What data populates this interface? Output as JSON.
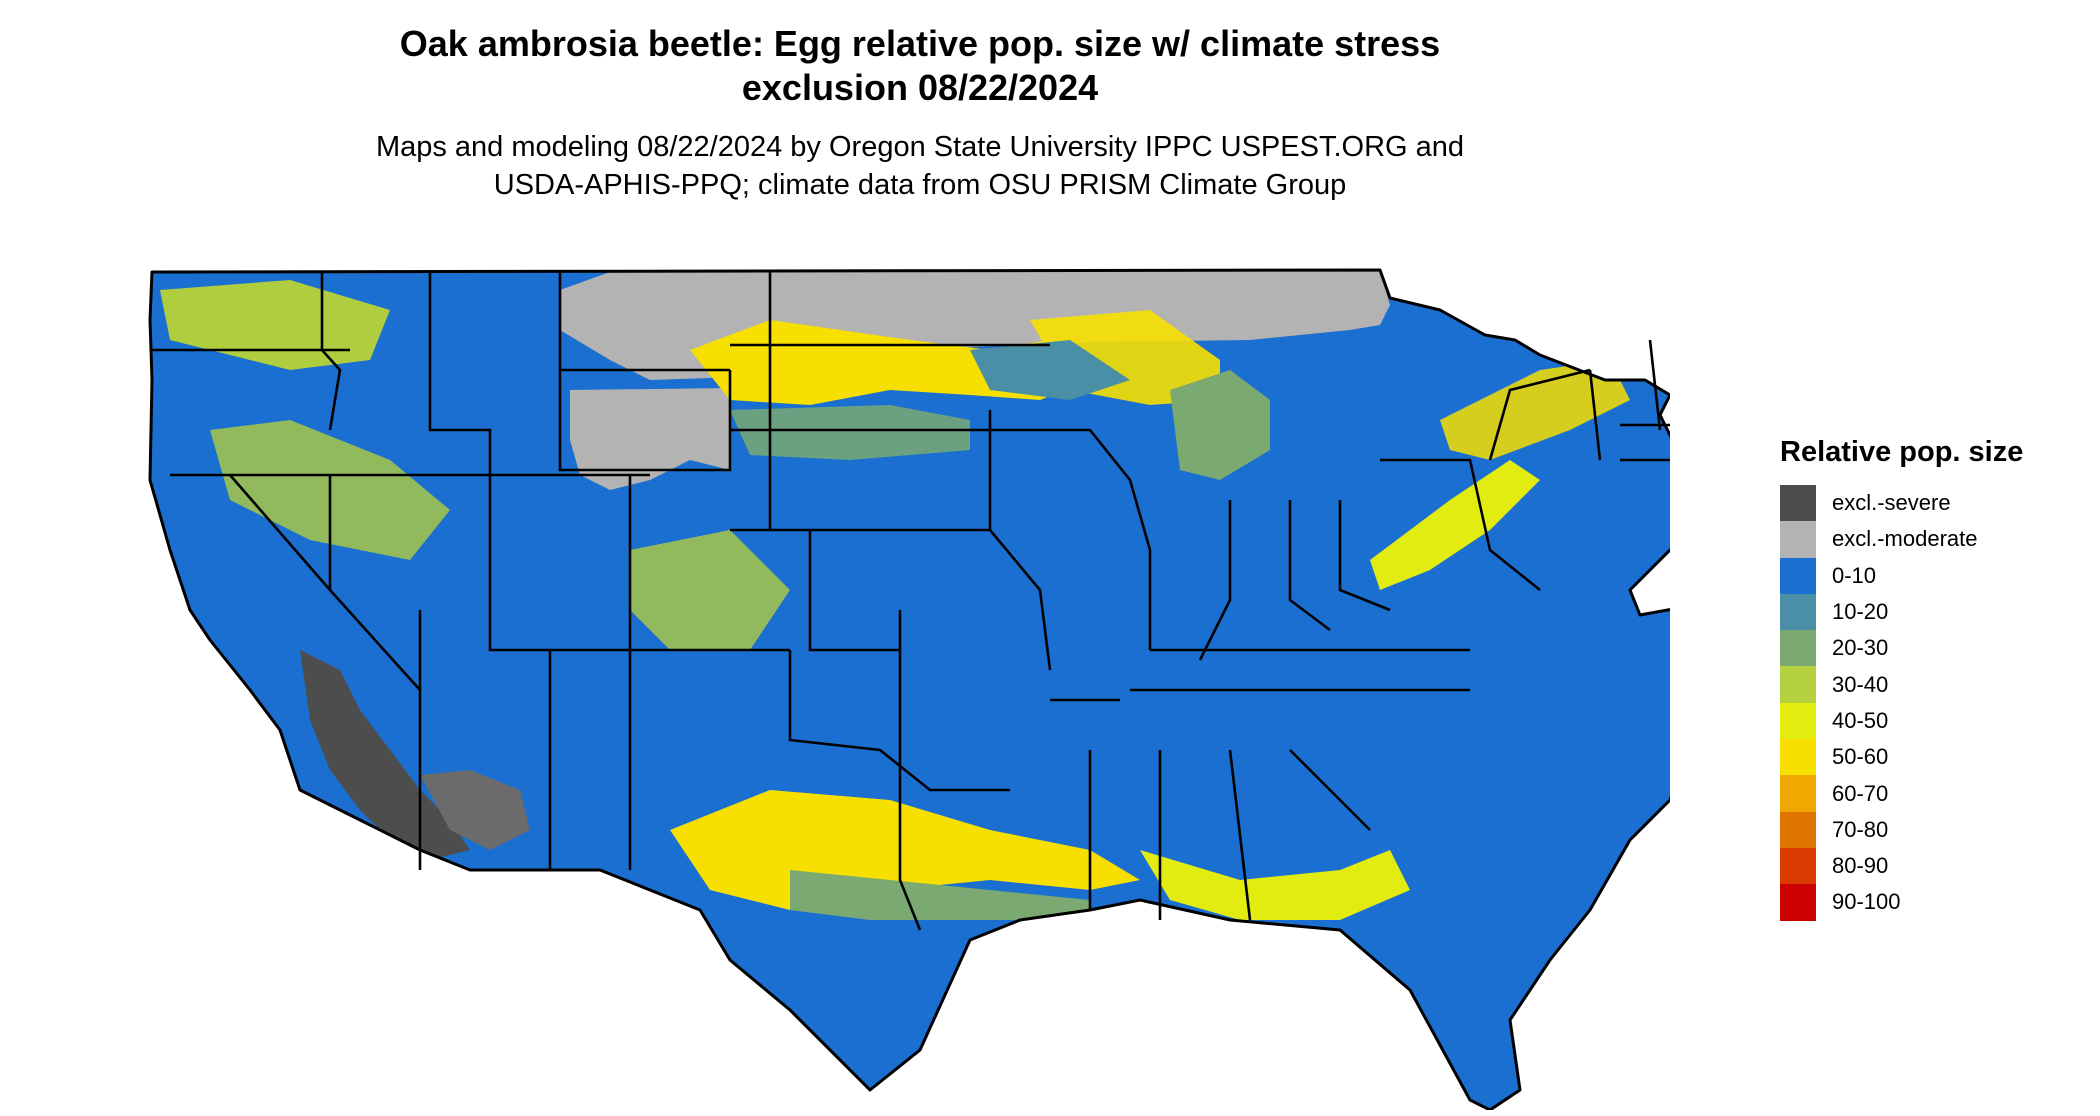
{
  "title": {
    "line1": "Oak ambrosia beetle: Egg relative pop. size w/ climate stress",
    "line2": "exclusion 08/22/2024"
  },
  "subtitle": {
    "line1": "Maps and modeling 08/22/2024 by Oregon State University IPPC USPEST.ORG and",
    "line2": "USDA-APHIS-PPQ; climate data from OSU PRISM Climate Group"
  },
  "legend": {
    "title": "Relative pop. size",
    "items": [
      {
        "label": "excl.-severe",
        "color": "#4d4d4d"
      },
      {
        "label": "excl.-moderate",
        "color": "#b3b3b3"
      },
      {
        "label": "0-10",
        "color": "#1a6fd0"
      },
      {
        "label": "10-20",
        "color": "#4a8fa5"
      },
      {
        "label": "20-30",
        "color": "#7aaa72"
      },
      {
        "label": "30-40",
        "color": "#b5d03e"
      },
      {
        "label": "40-50",
        "color": "#e3ec10"
      },
      {
        "label": "50-60",
        "color": "#f7df00"
      },
      {
        "label": "60-70",
        "color": "#f0a800"
      },
      {
        "label": "70-80",
        "color": "#e07400"
      },
      {
        "label": "80-90",
        "color": "#d93a00"
      },
      {
        "label": "90-100",
        "color": "#cc0000"
      }
    ]
  },
  "map": {
    "region": "contiguous United States",
    "base_color": "#1a6fd0",
    "border_color": "#000000"
  }
}
